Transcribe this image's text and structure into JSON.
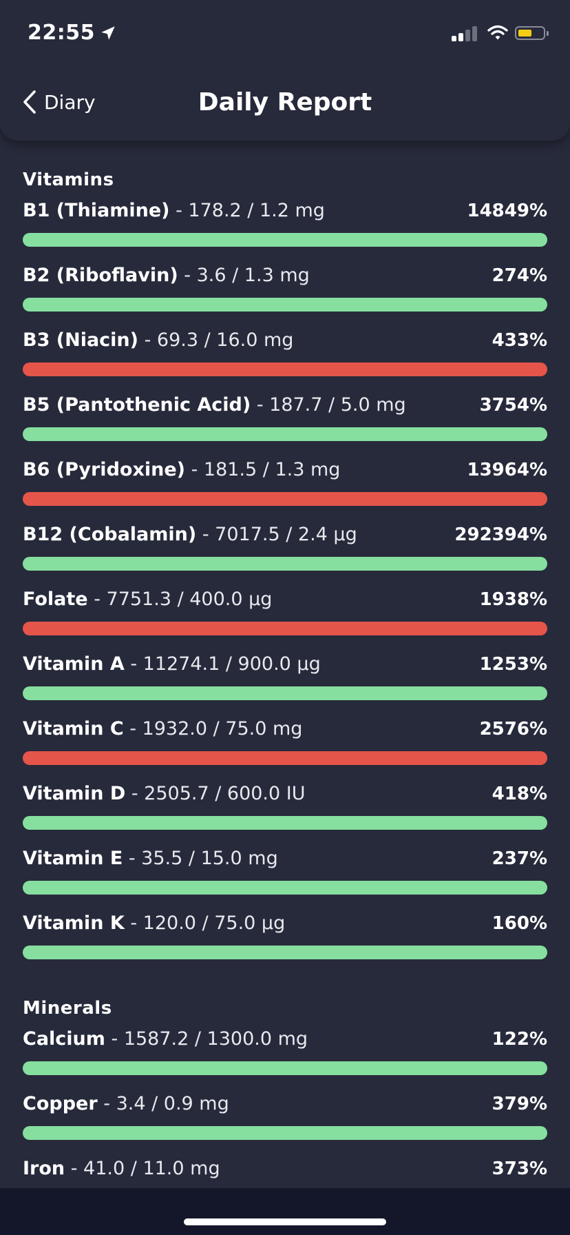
{
  "status_bar": {
    "time": "22:55",
    "battery_level": 0.55,
    "battery_color": "#f5cc14"
  },
  "header": {
    "back_label": "Diary",
    "title": "Daily Report"
  },
  "colors": {
    "good": "#86df9f",
    "bad": "#e5554a",
    "background": "#272a3b"
  },
  "sections": [
    {
      "title": "Vitamins",
      "items": [
        {
          "name": "B1 (Thiamine)",
          "amount": "- 178.2 / 1.2 mg",
          "percent": "14849%",
          "status": "good"
        },
        {
          "name": "B2 (Riboflavin)",
          "amount": "- 3.6 / 1.3 mg",
          "percent": "274%",
          "status": "good"
        },
        {
          "name": "B3 (Niacin)",
          "amount": "- 69.3 / 16.0 mg",
          "percent": "433%",
          "status": "bad"
        },
        {
          "name": "B5 (Pantothenic Acid)",
          "amount": "- 187.7 / 5.0 mg",
          "percent": "3754%",
          "status": "good"
        },
        {
          "name": "B6 (Pyridoxine)",
          "amount": "- 181.5 / 1.3 mg",
          "percent": "13964%",
          "status": "bad"
        },
        {
          "name": "B12 (Cobalamin)",
          "amount": "- 7017.5 / 2.4 µg",
          "percent": "292394%",
          "status": "good"
        },
        {
          "name": "Folate",
          "amount": "- 7751.3 / 400.0 µg",
          "percent": "1938%",
          "status": "bad"
        },
        {
          "name": "Vitamin A",
          "amount": "- 11274.1 / 900.0 µg",
          "percent": "1253%",
          "status": "good"
        },
        {
          "name": "Vitamin C",
          "amount": "- 1932.0 / 75.0 mg",
          "percent": "2576%",
          "status": "bad"
        },
        {
          "name": "Vitamin D",
          "amount": "- 2505.7 / 600.0 IU",
          "percent": "418%",
          "status": "good"
        },
        {
          "name": "Vitamin E",
          "amount": "- 35.5 / 15.0 mg",
          "percent": "237%",
          "status": "good"
        },
        {
          "name": "Vitamin K",
          "amount": "- 120.0 / 75.0 µg",
          "percent": "160%",
          "status": "good"
        }
      ]
    },
    {
      "title": "Minerals",
      "items": [
        {
          "name": "Calcium",
          "amount": "- 1587.2 / 1300.0 mg",
          "percent": "122%",
          "status": "good"
        },
        {
          "name": "Copper",
          "amount": "- 3.4 / 0.9 mg",
          "percent": "379%",
          "status": "good"
        },
        {
          "name": "Iron",
          "amount": "- 41.0 / 11.0 mg",
          "percent": "373%",
          "status": "good"
        }
      ]
    }
  ]
}
